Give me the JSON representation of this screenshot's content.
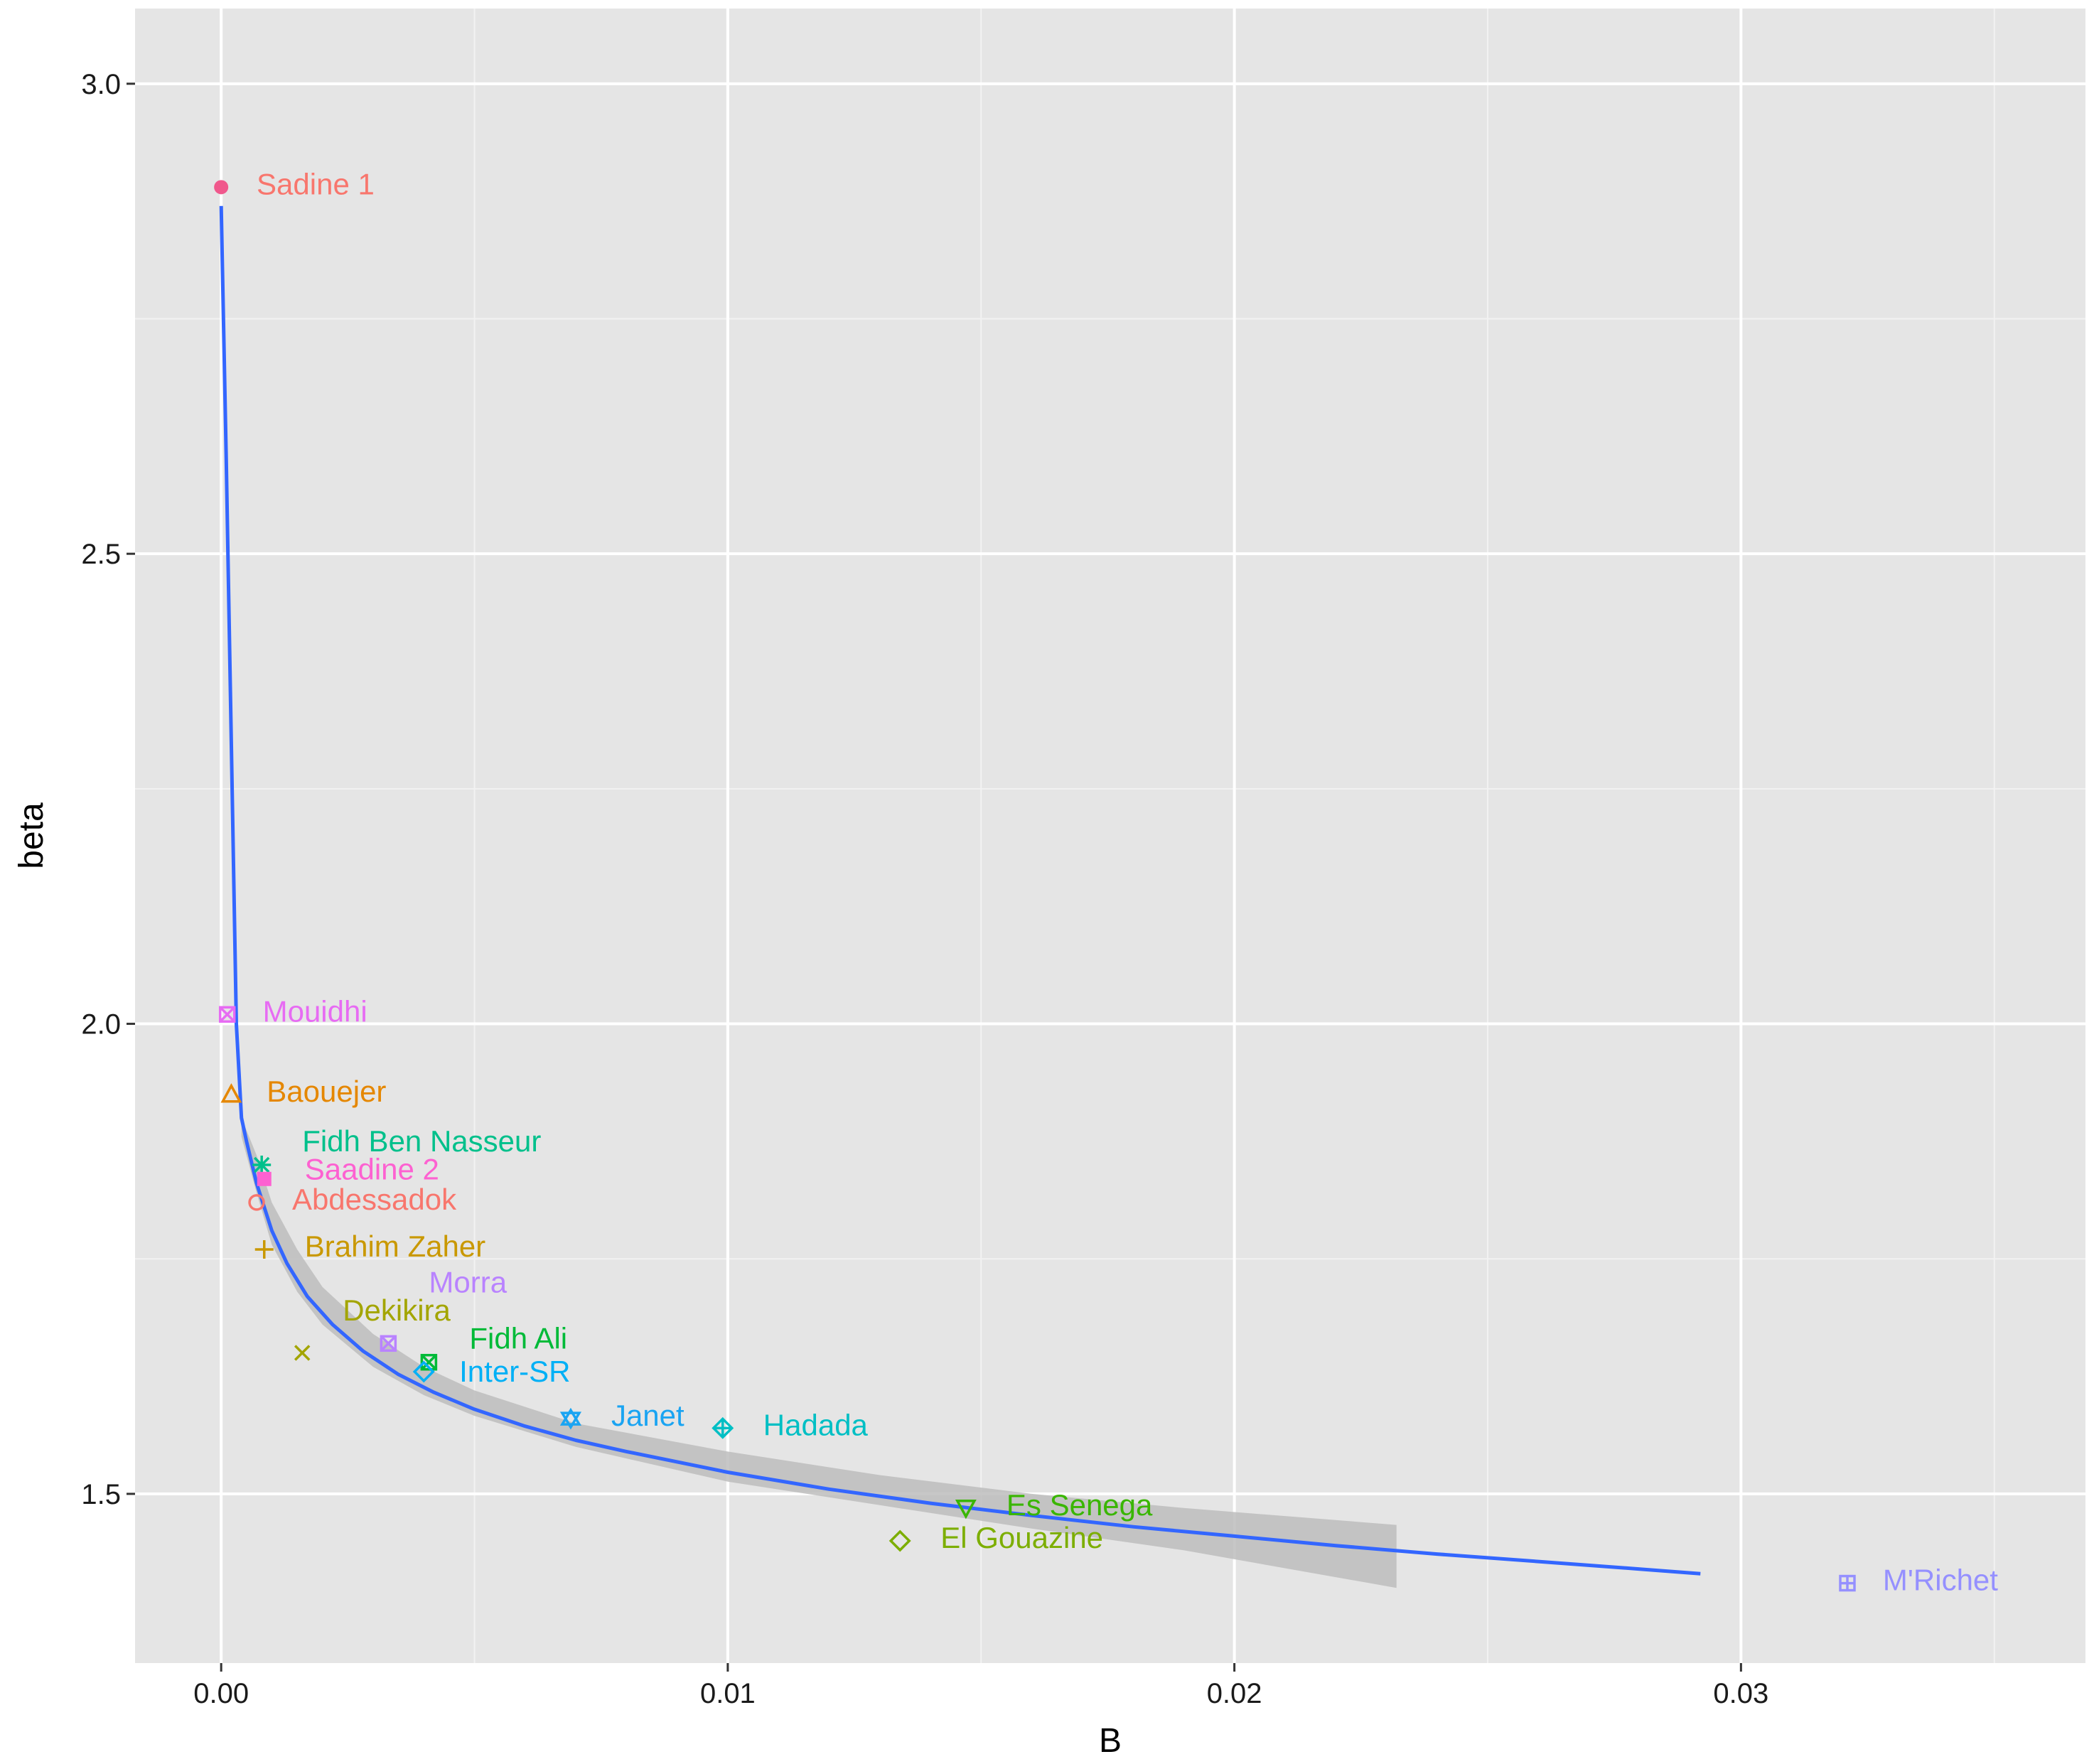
{
  "chart_data": {
    "type": "scatter",
    "title": "",
    "xlabel": "B",
    "ylabel": "beta",
    "xlim": [
      -0.0017,
      0.0368
    ],
    "ylim": [
      1.32,
      3.08
    ],
    "x_ticks": [
      {
        "value": 0.0,
        "label": "0.00"
      },
      {
        "value": 0.01,
        "label": "0.01"
      },
      {
        "value": 0.02,
        "label": "0.02"
      },
      {
        "value": 0.03,
        "label": "0.03"
      }
    ],
    "y_ticks": [
      {
        "value": 1.5,
        "label": "1.5"
      },
      {
        "value": 2.0,
        "label": "2.0"
      },
      {
        "value": 2.5,
        "label": "2.5"
      },
      {
        "value": 3.0,
        "label": "3.0"
      }
    ],
    "grid": true,
    "legend": "none",
    "colors": {
      "panel": "#e5e5e5",
      "grid_major": "#ffffff",
      "grid_minor": "#f2f2f2",
      "fit_line": "#3366ff",
      "ribbon": "#bdbdbd"
    },
    "fit_curve": {
      "x": [
        0.0,
        0.0001,
        0.0002,
        0.0003,
        0.0004,
        0.0005,
        0.0007,
        0.001,
        0.0013,
        0.0017,
        0.0022,
        0.0028,
        0.0035,
        0.0042,
        0.005,
        0.006,
        0.007,
        0.008,
        0.01,
        0.012,
        0.014,
        0.016,
        0.018,
        0.02,
        0.022,
        0.024,
        0.026,
        0.028,
        0.0292
      ],
      "y": [
        2.87,
        2.6,
        2.3,
        2.0,
        1.9,
        1.875,
        1.83,
        1.78,
        1.745,
        1.71,
        1.68,
        1.652,
        1.627,
        1.608,
        1.59,
        1.572,
        1.557,
        1.545,
        1.523,
        1.505,
        1.49,
        1.477,
        1.465,
        1.455,
        1.445,
        1.436,
        1.428,
        1.42,
        1.415
      ]
    },
    "confidence_band": {
      "x": [
        0.0004,
        0.0007,
        0.001,
        0.0015,
        0.002,
        0.003,
        0.004,
        0.005,
        0.007,
        0.01,
        0.013,
        0.016,
        0.019,
        0.0232
      ],
      "upper": [
        1.9,
        1.86,
        1.81,
        1.76,
        1.72,
        1.67,
        1.635,
        1.61,
        1.575,
        1.545,
        1.52,
        1.5,
        1.485,
        1.467
      ],
      "lower": [
        1.88,
        1.82,
        1.765,
        1.715,
        1.68,
        1.635,
        1.605,
        1.583,
        1.55,
        1.513,
        1.488,
        1.463,
        1.44,
        1.4
      ]
    },
    "points": [
      {
        "name": "Sadine 1",
        "x": 0.0,
        "y": 2.89,
        "color": "#f8766d",
        "display_color": "#f0588c",
        "shape": "filled-circle",
        "label_dx": 0.0007,
        "label_dy": 0.003
      },
      {
        "name": "Mouidhi",
        "x": 0.00012,
        "y": 2.01,
        "color": "#e76bf3",
        "shape": "square-x",
        "label_dx": 0.0007,
        "label_dy": 0.003
      },
      {
        "name": "Baouejer",
        "x": 0.0002,
        "y": 1.925,
        "color": "#e58700",
        "shape": "triangle",
        "label_dx": 0.0007,
        "label_dy": 0.003
      },
      {
        "name": "Fidh Ben Nasseur",
        "x": 0.0008,
        "y": 1.85,
        "color": "#00c08b",
        "shape": "asterisk",
        "label_dx": 0.0008,
        "label_dy": 0.025
      },
      {
        "name": "Saadine 2",
        "x": 0.00085,
        "y": 1.835,
        "color": "#fd61d1",
        "shape": "filled-square",
        "label_dx": 0.0008,
        "label_dy": 0.01
      },
      {
        "name": "Abdessadok",
        "x": 0.0007,
        "y": 1.81,
        "color": "#f8766d",
        "shape": "circle",
        "label_dx": 0.0007,
        "label_dy": 0.003
      },
      {
        "name": "Brahim Zaher",
        "x": 0.00085,
        "y": 1.76,
        "color": "#c99800",
        "shape": "plus",
        "label_dx": 0.0008,
        "label_dy": 0.003
      },
      {
        "name": "Morra",
        "x": 0.0033,
        "y": 1.66,
        "color": "#b983ff",
        "shape": "square-x",
        "label_dx": 0.0008,
        "label_dy": 0.065
      },
      {
        "name": "Dekikira",
        "x": 0.0016,
        "y": 1.65,
        "color": "#a3a500",
        "shape": "cross",
        "label_dx": 0.0008,
        "label_dy": 0.045
      },
      {
        "name": "Fidh Ali",
        "x": 0.0041,
        "y": 1.64,
        "color": "#00ba38",
        "shape": "square-x",
        "label_dx": 0.0008,
        "label_dy": 0.025
      },
      {
        "name": "Inter-SR",
        "x": 0.004,
        "y": 1.63,
        "color": "#00b0f6",
        "shape": "diamond",
        "label_dx": 0.0007,
        "label_dy": 0.0
      },
      {
        "name": "Janet",
        "x": 0.0069,
        "y": 1.58,
        "color": "#1aa4f2",
        "shape": "star-of-david",
        "label_dx": 0.0008,
        "label_dy": 0.003
      },
      {
        "name": "Hadada",
        "x": 0.0099,
        "y": 1.57,
        "color": "#00bfc4",
        "shape": "diamond-plus",
        "label_dx": 0.0008,
        "label_dy": 0.003
      },
      {
        "name": "Es Senega",
        "x": 0.0147,
        "y": 1.485,
        "color": "#39b600",
        "shape": "triangle-down",
        "label_dx": 0.0008,
        "label_dy": 0.003
      },
      {
        "name": "El Gouazine",
        "x": 0.0134,
        "y": 1.45,
        "color": "#7cae00",
        "shape": "diamond",
        "label_dx": 0.0008,
        "label_dy": 0.003
      },
      {
        "name": "M'Richet",
        "x": 0.0321,
        "y": 1.405,
        "color": "#9590ff",
        "shape": "square-plus",
        "label_dx": 0.0007,
        "label_dy": 0.003
      }
    ]
  }
}
